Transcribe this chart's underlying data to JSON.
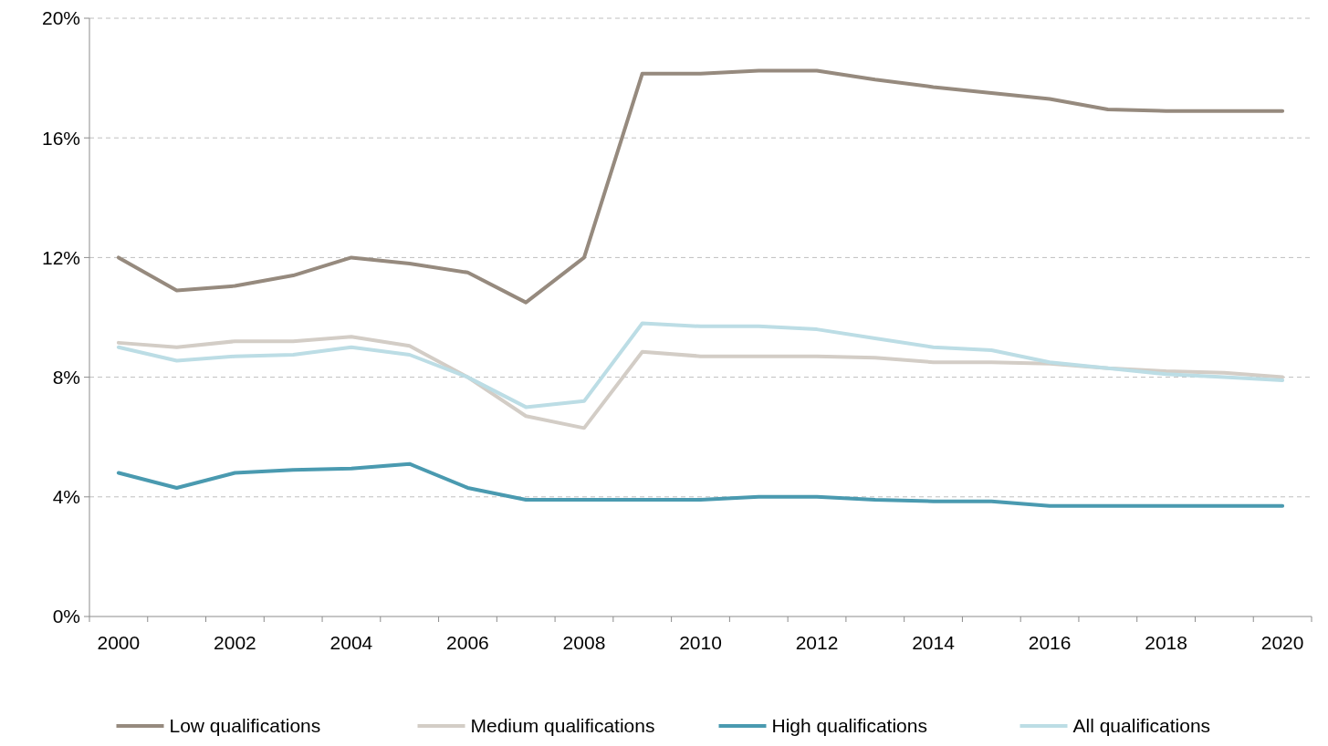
{
  "chart_data": {
    "type": "line",
    "categories": [
      "2000",
      null,
      "2002",
      null,
      "2004",
      null,
      "2006",
      null,
      "2008",
      null,
      "2010",
      null,
      "2012",
      null,
      "2014",
      null,
      "2016",
      null,
      "2018",
      null,
      "2020"
    ],
    "series": [
      {
        "name": "Low qualifications",
        "color": "#968a7e",
        "values": [
          12.0,
          10.9,
          11.05,
          11.4,
          12.0,
          11.8,
          11.5,
          10.5,
          12.0,
          18.15,
          18.15,
          18.25,
          18.25,
          17.95,
          17.7,
          17.5,
          17.3,
          16.95,
          16.9,
          16.9,
          16.9
        ]
      },
      {
        "name": "Medium qualifications",
        "color": "#d3cdc6",
        "values": [
          9.15,
          9.0,
          9.2,
          9.2,
          9.35,
          9.05,
          8.0,
          6.7,
          6.3,
          8.85,
          8.7,
          8.7,
          8.7,
          8.65,
          8.5,
          8.5,
          8.45,
          8.3,
          8.2,
          8.15,
          8.0
        ]
      },
      {
        "name": "High qualifications",
        "color": "#4a9ab0",
        "values": [
          4.8,
          4.3,
          4.8,
          4.9,
          4.95,
          5.1,
          4.3,
          3.9,
          3.9,
          3.9,
          3.9,
          4.0,
          4.0,
          3.9,
          3.85,
          3.85,
          3.7,
          3.7,
          3.7,
          3.7,
          3.7
        ]
      },
      {
        "name": "All qualifications",
        "color": "#bcdde5",
        "values": [
          9.0,
          8.55,
          8.7,
          8.75,
          9.0,
          8.75,
          8.0,
          7.0,
          7.2,
          9.8,
          9.7,
          9.7,
          9.6,
          9.3,
          9.0,
          8.9,
          8.5,
          8.3,
          8.1,
          8.0,
          7.9
        ]
      }
    ],
    "ylim": [
      0,
      20
    ],
    "yticks": [
      {
        "value": 0,
        "label": "0%"
      },
      {
        "value": 4,
        "label": "4%"
      },
      {
        "value": 8,
        "label": "8%"
      },
      {
        "value": 12,
        "label": "12%"
      },
      {
        "value": 16,
        "label": "16%"
      },
      {
        "value": 20,
        "label": "20%"
      }
    ],
    "grid": "y",
    "legend": "bottom",
    "line_style": "solid",
    "marker": "none"
  }
}
